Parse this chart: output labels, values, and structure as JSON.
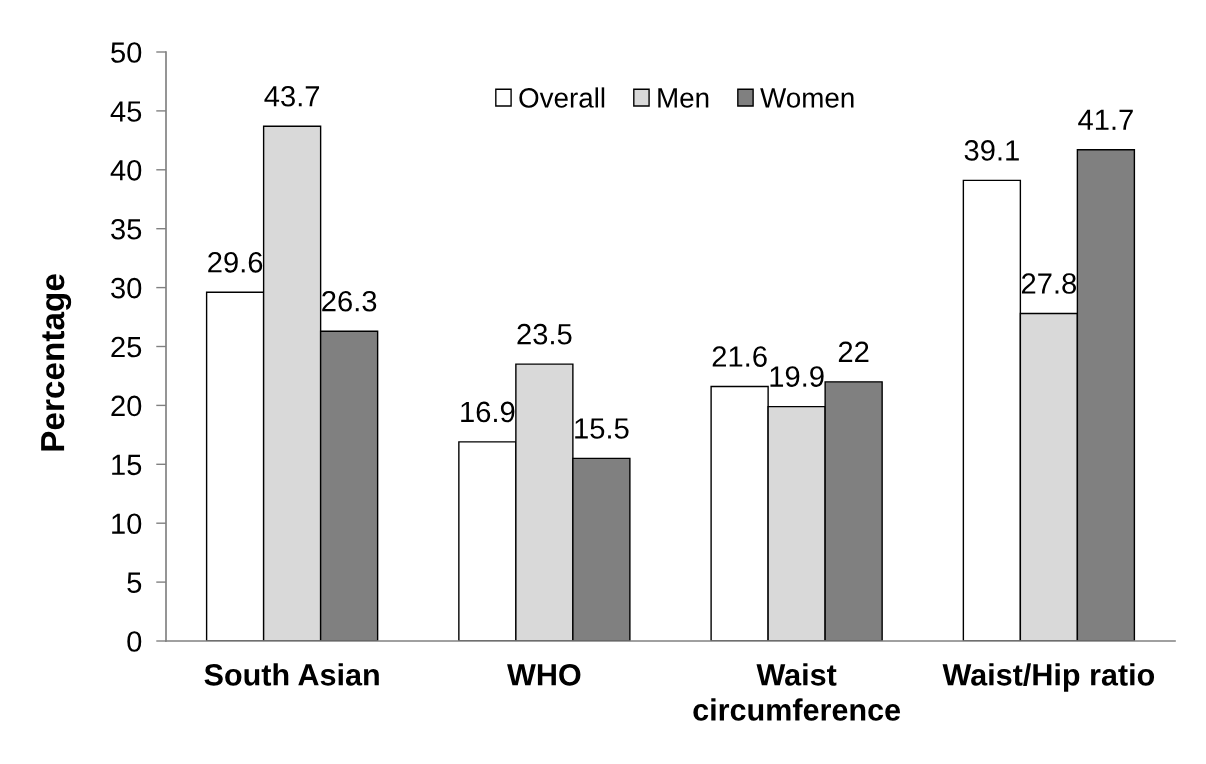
{
  "chart_data": {
    "type": "bar",
    "ylabel": "Percentage",
    "categories": [
      "South Asian",
      "WHO",
      "Waist\ncircumference",
      "Waist/Hip ratio"
    ],
    "series": [
      {
        "name": "Overall",
        "color": "#ffffff",
        "values": [
          29.6,
          16.9,
          21.6,
          39.1
        ]
      },
      {
        "name": "Men",
        "color": "#d9d9d9",
        "values": [
          43.7,
          23.5,
          19.9,
          27.8
        ]
      },
      {
        "name": "Women",
        "color": "#808080",
        "values": [
          26.3,
          15.5,
          22,
          41.7
        ]
      }
    ],
    "ylim": [
      0,
      50
    ],
    "yticks": [
      0,
      5,
      10,
      15,
      20,
      25,
      30,
      35,
      40,
      45,
      50
    ],
    "data_labels": true,
    "legend": "top",
    "grid": false
  }
}
